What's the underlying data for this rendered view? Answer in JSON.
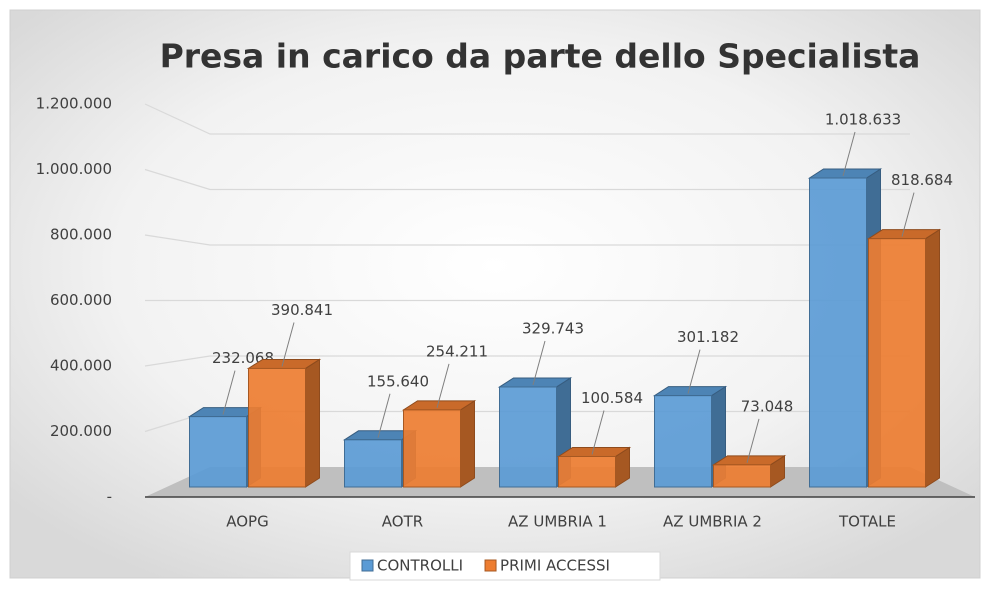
{
  "chart_data": {
    "type": "bar3d",
    "title": "Presa in carico da parte dello Specialista",
    "categories": [
      "AOPG",
      "AOTR",
      "AZ UMBRIA 1",
      "AZ UMBRIA 2",
      "TOTALE"
    ],
    "series": [
      {
        "name": "CONTROLLI",
        "color": "#5b9bd5",
        "values": [
          232068,
          155640,
          329743,
          301182,
          1018633
        ],
        "value_labels": [
          "232.068",
          "155.640",
          "329.743",
          "301.182",
          "1.018.633"
        ]
      },
      {
        "name": "PRIMI ACCESSI",
        "color": "#ed7d31",
        "values": [
          390841,
          254211,
          100584,
          73048,
          818684
        ],
        "value_labels": [
          "390.841",
          "254.211",
          "100.584",
          "73.048",
          "818.684"
        ]
      }
    ],
    "ylim": [
      0,
      1200000
    ],
    "yticks": [
      {
        "value": 0,
        "label": "-"
      },
      {
        "value": 200000,
        "label": "200.000"
      },
      {
        "value": 400000,
        "label": "400.000"
      },
      {
        "value": 600000,
        "label": "600.000"
      },
      {
        "value": 800000,
        "label": "800.000"
      },
      {
        "value": 1000000,
        "label": "1.000.000"
      },
      {
        "value": 1200000,
        "label": "1.200.000"
      }
    ],
    "grid": true,
    "legend": "bottom"
  }
}
